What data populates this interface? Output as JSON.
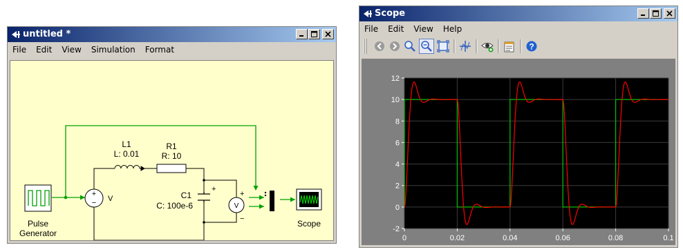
{
  "left_window": {
    "title": "untitled *",
    "menu": [
      "File",
      "Edit",
      "View",
      "Simulation",
      "Format"
    ],
    "components": {
      "pulse_generator": {
        "label_line1": "Pulse",
        "label_line2": "Generator"
      },
      "voltage_source": {
        "sign_plus": "+",
        "sign_minus": "−",
        "label": "V"
      },
      "inductor": {
        "name": "L1",
        "param": "L: 0.01"
      },
      "resistor": {
        "name": "R1",
        "param": "R: 10"
      },
      "capacitor": {
        "name": "C1",
        "param": "C: 100e-6",
        "sign_plus": "+"
      },
      "voltmeter": {
        "label": "V",
        "sign_plus": "+",
        "sign_minus": "−"
      },
      "scope": {
        "label": "Scope"
      }
    }
  },
  "right_window": {
    "title": "Scope",
    "menu": [
      "File",
      "Edit",
      "View",
      "Help"
    ],
    "toolbar_icons": [
      "back-icon",
      "forward-icon",
      "zoom-icon",
      "zoom-active-icon",
      "zoom-fit-icon",
      "cursor-icon",
      "eye-icon",
      "properties-icon",
      "help-icon"
    ],
    "chart_data": {
      "type": "line",
      "x_ticks": [
        "0",
        "0.02",
        "0.04",
        "0.06",
        "0.08",
        "0.1"
      ],
      "y_ticks": [
        "-2",
        "0",
        "2",
        "4",
        "6",
        "8",
        "10",
        "12"
      ],
      "xlim": [
        0,
        0.1
      ],
      "ylim": [
        -2,
        12
      ],
      "grid": true,
      "series": [
        {
          "color": "#00c000",
          "kind": "square",
          "period": 0.04,
          "high": 10,
          "low": 0,
          "rise_times": [
            0.0,
            0.04,
            0.08
          ],
          "fall_times": [
            0.02,
            0.06
          ]
        },
        {
          "color": "#ff0000",
          "kind": "rlc_response",
          "R": 10,
          "L": 0.01,
          "C": 0.0001,
          "peak_overshoot": 11.7,
          "min_undershoot": -1.7
        }
      ]
    }
  }
}
